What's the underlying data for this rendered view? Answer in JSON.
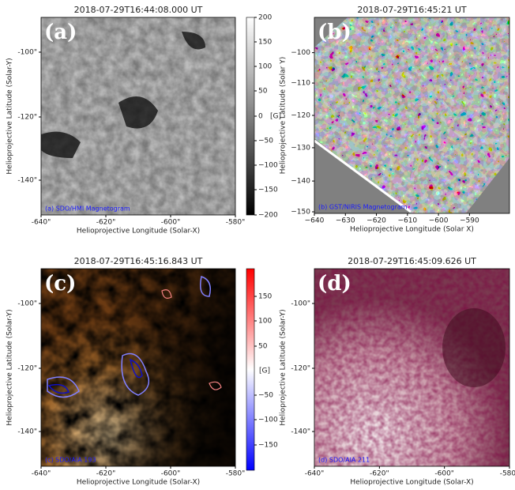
{
  "panels": [
    {
      "title": "2018-07-29T16:44:08.000 UT",
      "label": "(a)",
      "caption": "(a) SDO/HMI Magnetogram",
      "xlabel": "Helioprojective Longitude (Solar-X)",
      "ylabel": "Helioprojective Latitude (Solar-Y)",
      "xticks": [
        "-640\"",
        "-620\"",
        "-600\"",
        "-580\""
      ],
      "yticks": [
        "-100\"",
        "-120\"",
        "-140\""
      ]
    },
    {
      "title": "2018-07-29T16:45:21 UT",
      "label": "(b)",
      "caption": "(b) GST/NIRIS Magnetogram",
      "xlabel": "Helioprojective Longitude (Solar X)",
      "ylabel": "Helioprojective Latitude (Solar Y)",
      "xticks": [
        "−640",
        "−630",
        "−620",
        "−610",
        "−600",
        "−590"
      ],
      "yticks": [
        "−100",
        "−110",
        "−120",
        "−130",
        "−140",
        "−150"
      ]
    },
    {
      "title": "2018-07-29T16:45:16.843 UT",
      "label": "(c)",
      "caption": "(c) SDO/AIA 193",
      "xlabel": "Helioprojective Longitude (Solar-X)",
      "ylabel": "Helioprojective Latitude (Solar-Y)",
      "xticks": [
        "-640\"",
        "-620\"",
        "-600\"",
        "-580\""
      ],
      "yticks": [
        "-100\"",
        "-120\"",
        "-140\""
      ]
    },
    {
      "title": "2018-07-29T16:45:09.626 UT",
      "label": "(d)",
      "caption": "(d) SDO/AIA 211",
      "xlabel": "Helioprojective Longitude (Solar-X)",
      "ylabel": "Helioprojective Latitude (Solar-Y)",
      "xticks": [
        "-640\"",
        "-620\"",
        "-600\"",
        "-580\""
      ],
      "yticks": [
        "-100\"",
        "-120\"",
        "-140\""
      ]
    }
  ],
  "colorbars": [
    {
      "ticks": [
        "200",
        "150",
        "100",
        "50",
        "0",
        "−50",
        "−100",
        "−150",
        "−200"
      ],
      "unit": "[G]"
    },
    {
      "ticks": [
        "150",
        "100",
        "50",
        "−50",
        "−100",
        "−150"
      ],
      "unit": "[G]"
    }
  ]
}
